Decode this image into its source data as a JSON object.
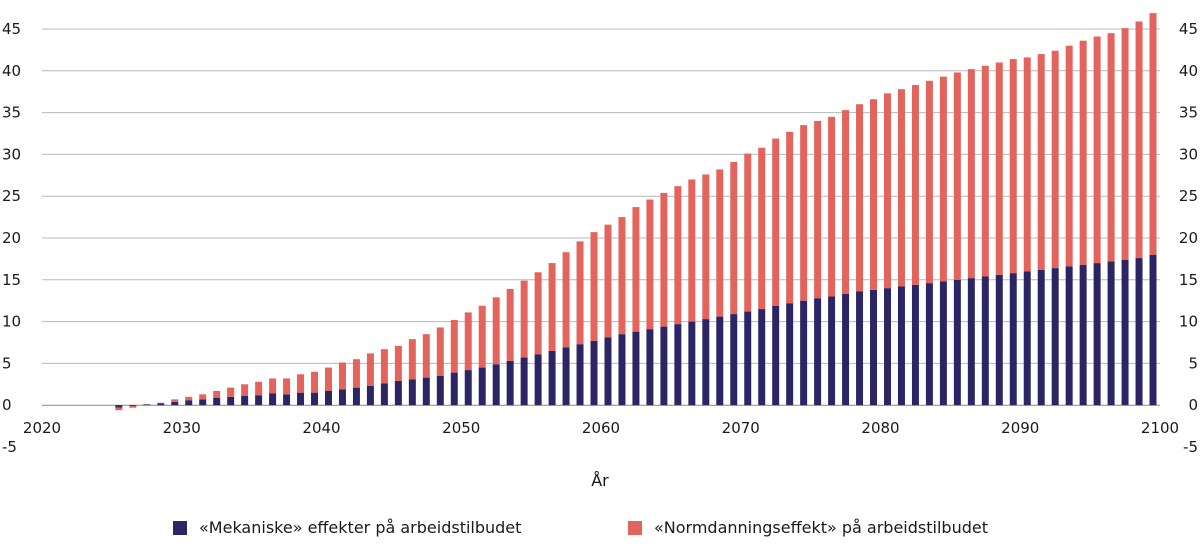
{
  "chart_data": {
    "type": "bar",
    "stacked": true,
    "xlabel": "År",
    "ylabel": "",
    "ylim": [
      -5,
      45
    ],
    "yticks": [
      -5,
      0,
      5,
      10,
      15,
      20,
      25,
      30,
      35,
      40,
      45
    ],
    "y_axis_sides": "left and right",
    "xticks": [
      2020,
      2030,
      2040,
      2050,
      2060,
      2070,
      2080,
      2090,
      2100
    ],
    "grid": "horizontal",
    "legend_position": "bottom",
    "categories": [
      2021,
      2022,
      2023,
      2024,
      2025,
      2026,
      2027,
      2028,
      2029,
      2030,
      2031,
      2032,
      2033,
      2034,
      2035,
      2036,
      2037,
      2038,
      2039,
      2040,
      2041,
      2042,
      2043,
      2044,
      2045,
      2046,
      2047,
      2048,
      2049,
      2050,
      2051,
      2052,
      2053,
      2054,
      2055,
      2056,
      2057,
      2058,
      2059,
      2060,
      2061,
      2062,
      2063,
      2064,
      2065,
      2066,
      2067,
      2068,
      2069,
      2070,
      2071,
      2072,
      2073,
      2074,
      2075,
      2076,
      2077,
      2078,
      2079,
      2080,
      2081,
      2082,
      2083,
      2084,
      2085,
      2086,
      2087,
      2088,
      2089,
      2090,
      2091,
      2092,
      2093,
      2094,
      2095,
      2096,
      2097,
      2098,
      2099,
      2100
    ],
    "series": [
      {
        "name": "«Mekaniske» effekter på arbeidstilbudet",
        "color": "#2b2563",
        "values": [
          0,
          0,
          0,
          0,
          0,
          -0.3,
          -0.1,
          0.1,
          0.2,
          0.4,
          0.6,
          0.7,
          0.9,
          1.0,
          1.1,
          1.2,
          1.4,
          1.3,
          1.5,
          1.5,
          1.7,
          1.9,
          2.1,
          2.3,
          2.6,
          2.9,
          3.1,
          3.3,
          3.5,
          3.9,
          4.2,
          4.5,
          4.9,
          5.3,
          5.7,
          6.1,
          6.5,
          6.9,
          7.3,
          7.7,
          8.1,
          8.5,
          8.8,
          9.1,
          9.4,
          9.7,
          10.0,
          10.3,
          10.6,
          10.9,
          11.2,
          11.5,
          11.9,
          12.2,
          12.5,
          12.8,
          13.0,
          13.3,
          13.6,
          13.8,
          14.0,
          14.2,
          14.4,
          14.6,
          14.8,
          15.0,
          15.2,
          15.4,
          15.6,
          15.8,
          16.0,
          16.2,
          16.4,
          16.6,
          16.8,
          17.0,
          17.2,
          17.4,
          17.6,
          18.0
        ]
      },
      {
        "name": "«Normdanningseffekt» på arbeidstilbudet",
        "color": "#e3645d",
        "values": [
          0,
          0,
          0,
          0,
          0,
          -0.3,
          -0.2,
          0,
          0.1,
          0.3,
          0.4,
          0.6,
          0.8,
          1.1,
          1.4,
          1.6,
          1.8,
          1.9,
          2.2,
          2.5,
          2.8,
          3.2,
          3.4,
          3.9,
          4.1,
          4.2,
          4.8,
          5.2,
          5.8,
          6.3,
          6.9,
          7.4,
          8.0,
          8.6,
          9.2,
          9.8,
          10.5,
          11.4,
          12.3,
          13.0,
          13.5,
          14.0,
          14.9,
          15.5,
          16.0,
          16.5,
          17.0,
          17.3,
          17.6,
          18.2,
          18.9,
          19.3,
          20.0,
          20.5,
          21.0,
          21.2,
          21.5,
          22.0,
          22.4,
          22.8,
          23.3,
          23.6,
          23.9,
          24.2,
          24.5,
          24.8,
          25.0,
          25.2,
          25.4,
          25.6,
          25.6,
          25.8,
          26.0,
          26.4,
          26.8,
          27.1,
          27.3,
          27.7,
          28.3,
          28.9
        ]
      }
    ]
  }
}
